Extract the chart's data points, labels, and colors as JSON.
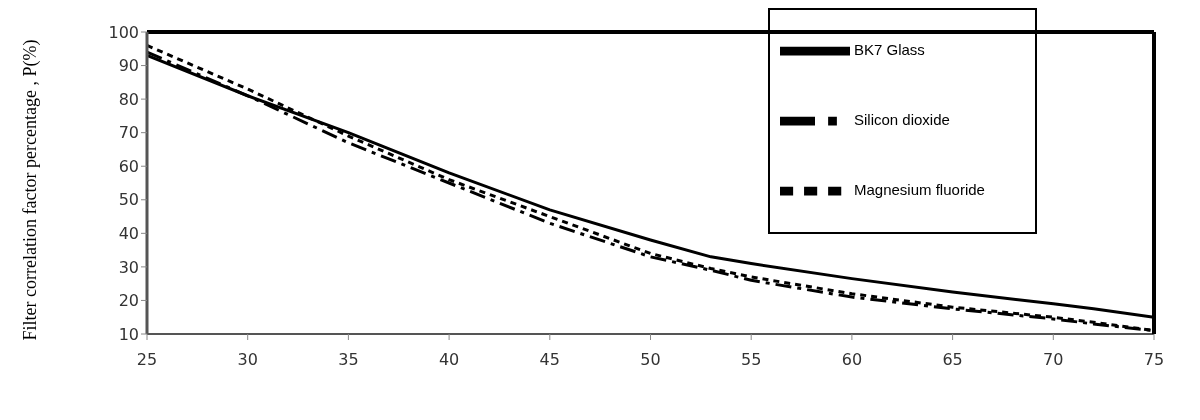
{
  "chart_data": {
    "type": "line",
    "ylabel": "Filter correlation factor percentage , P(%)",
    "x": [
      25,
      30,
      35,
      40,
      45,
      50,
      53,
      55,
      60,
      65,
      70,
      72,
      75
    ],
    "series": [
      {
        "name": "BK7 Glass",
        "color": "#000000",
        "line_style": "solid",
        "values": [
          93,
          81,
          70,
          58,
          47,
          38,
          33,
          31,
          26.5,
          22.5,
          19,
          17.5,
          15
        ]
      },
      {
        "name": "Silicon dioxide",
        "color": "#000000",
        "line_style": "dashed",
        "values": [
          94,
          81,
          67,
          55,
          43,
          33,
          29,
          26,
          21,
          17.5,
          14.5,
          13,
          11
        ]
      },
      {
        "name": "Magnesium fluoride",
        "color": "#000000",
        "line_style": "dotted",
        "values": [
          96,
          83,
          69,
          56,
          45,
          34,
          29.5,
          27,
          22,
          18,
          15,
          13.5,
          11
        ]
      }
    ],
    "xlim": [
      25,
      75
    ],
    "xticks": [
      25,
      30,
      35,
      40,
      45,
      50,
      55,
      60,
      65,
      70,
      75
    ],
    "ylim": [
      10,
      100
    ],
    "yticks": [
      10,
      20,
      30,
      40,
      50,
      60,
      70,
      80,
      90,
      100
    ],
    "grid": false,
    "legend": "top right",
    "marker": "none"
  }
}
